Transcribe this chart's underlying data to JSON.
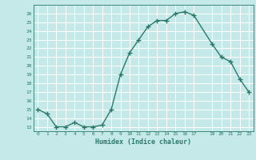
{
  "x": [
    0,
    1,
    2,
    3,
    4,
    5,
    6,
    7,
    8,
    9,
    10,
    11,
    12,
    13,
    14,
    15,
    16,
    17,
    19,
    20,
    21,
    22,
    23
  ],
  "y": [
    15,
    14.5,
    13,
    13,
    13.5,
    13,
    13,
    13.2,
    15,
    19,
    21.5,
    23,
    24.5,
    25.2,
    25.2,
    26,
    26.2,
    25.8,
    22.5,
    21,
    20.5,
    18.5,
    17
  ],
  "xlabel": "Humidex (Indice chaleur)",
  "xlim": [
    -0.5,
    23.5
  ],
  "ylim": [
    12.5,
    27
  ],
  "yticks": [
    13,
    14,
    15,
    16,
    17,
    18,
    19,
    20,
    21,
    22,
    23,
    24,
    25,
    26
  ],
  "xticks": [
    0,
    1,
    2,
    3,
    4,
    5,
    6,
    7,
    8,
    9,
    10,
    11,
    12,
    13,
    14,
    15,
    16,
    17,
    19,
    20,
    21,
    22,
    23
  ],
  "xtick_labels": [
    "0",
    "1",
    "2",
    "3",
    "4",
    "5",
    "6",
    "7",
    "8",
    "9",
    "10",
    "11",
    "12",
    "13",
    "14",
    "15",
    "16",
    "17",
    "19",
    "20",
    "21",
    "22",
    "23"
  ],
  "line_color": "#2a7a6a",
  "bg_color": "#c5e8e8",
  "grid_color": "#ffffff"
}
